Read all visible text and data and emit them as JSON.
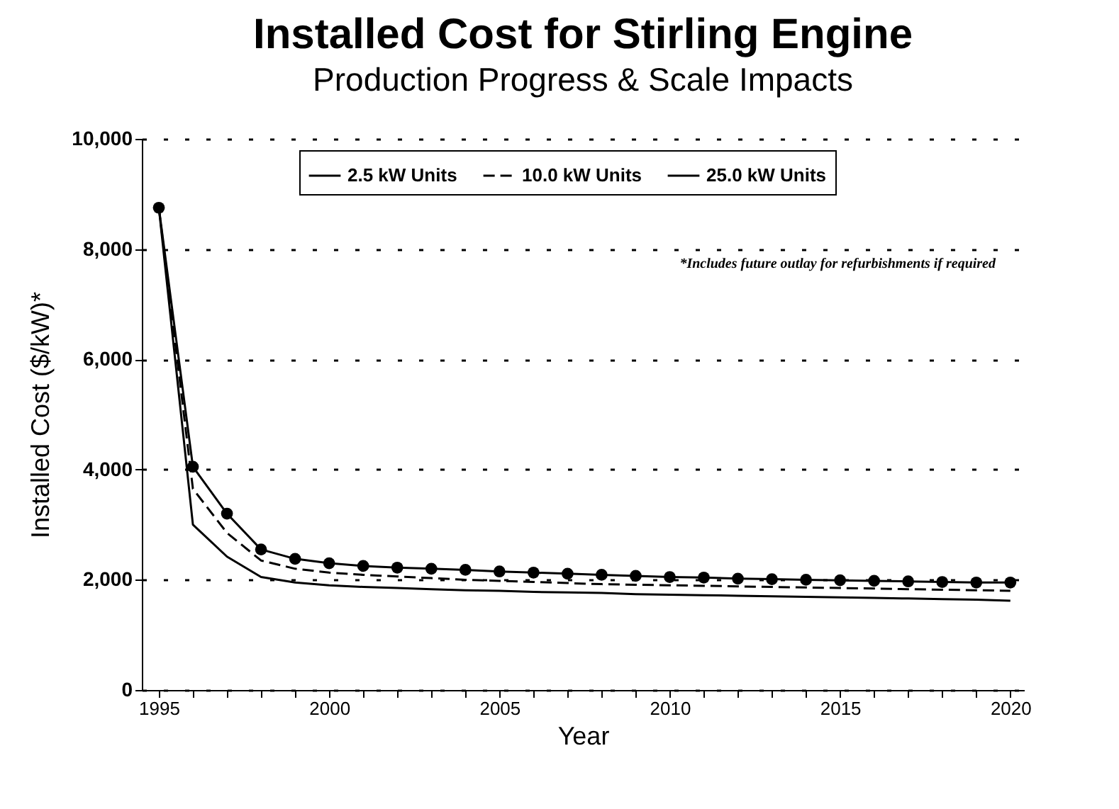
{
  "chart_data": {
    "type": "line",
    "title": "Installed Cost for Stirling Engine",
    "subtitle": "Production Progress & Scale Impacts",
    "xlabel": "Year",
    "ylabel": "Installed Cost ($/kW)*",
    "annotations": [
      "*Includes future outlay for refurbishments if required"
    ],
    "x": [
      1995,
      1996,
      1997,
      1998,
      1999,
      2000,
      2001,
      2002,
      2003,
      2004,
      2005,
      2006,
      2007,
      2008,
      2009,
      2010,
      2011,
      2012,
      2013,
      2014,
      2015,
      2016,
      2017,
      2018,
      2019,
      2020
    ],
    "series": [
      {
        "name": "2.5 kW Units",
        "color": "#000000",
        "line_style": "solid",
        "marker": "none",
        "values": [
          8750,
          3000,
          2420,
          2050,
          1950,
          1900,
          1870,
          1850,
          1830,
          1810,
          1800,
          1780,
          1770,
          1760,
          1740,
          1730,
          1720,
          1710,
          1700,
          1690,
          1680,
          1670,
          1660,
          1650,
          1640,
          1620
        ]
      },
      {
        "name": "10.0 kW Units",
        "color": "#000000",
        "line_style": "dashed",
        "marker": "none",
        "values": [
          8750,
          3650,
          2850,
          2350,
          2200,
          2130,
          2090,
          2060,
          2030,
          2000,
          1980,
          1960,
          1940,
          1920,
          1910,
          1900,
          1890,
          1880,
          1870,
          1860,
          1850,
          1840,
          1830,
          1820,
          1810,
          1800
        ]
      },
      {
        "name": "25.0 kW Units",
        "color": "#000000",
        "line_style": "solid",
        "marker": "circle",
        "values": [
          8750,
          4050,
          3200,
          2550,
          2380,
          2300,
          2250,
          2220,
          2200,
          2180,
          2150,
          2130,
          2110,
          2090,
          2070,
          2050,
          2040,
          2020,
          2010,
          2000,
          1990,
          1980,
          1970,
          1960,
          1950,
          1950
        ]
      }
    ],
    "xlim": [
      1994.5,
      2020.4
    ],
    "xticks": [
      1995,
      {
        "value": 1996,
        "label": null
      },
      {
        "value": 1997,
        "label": null
      },
      {
        "value": 1998,
        "label": null
      },
      {
        "value": 1999,
        "label": null
      },
      2000,
      {
        "value": 2001,
        "label": null
      },
      {
        "value": 2002,
        "label": null
      },
      {
        "value": 2003,
        "label": null
      },
      {
        "value": 2004,
        "label": null
      },
      2005,
      {
        "value": 2006,
        "label": null
      },
      {
        "value": 2007,
        "label": null
      },
      {
        "value": 2008,
        "label": null
      },
      {
        "value": 2009,
        "label": null
      },
      2010,
      {
        "value": 2011,
        "label": null
      },
      {
        "value": 2012,
        "label": null
      },
      {
        "value": 2013,
        "label": null
      },
      {
        "value": 2014,
        "label": null
      },
      2015,
      {
        "value": 2016,
        "label": null
      },
      {
        "value": 2017,
        "label": null
      },
      {
        "value": 2018,
        "label": null
      },
      {
        "value": 2019,
        "label": null
      },
      2020
    ],
    "ylim": [
      0,
      10000
    ],
    "yticks": [
      0,
      {
        "value": 2000,
        "label": "2,000"
      },
      {
        "value": 4000,
        "label": "4,000"
      },
      {
        "value": 6000,
        "label": "6,000"
      },
      {
        "value": 8000,
        "label": "8,000"
      },
      {
        "value": 10000,
        "label": "10,000"
      }
    ],
    "grid": "y",
    "legend": "top"
  }
}
